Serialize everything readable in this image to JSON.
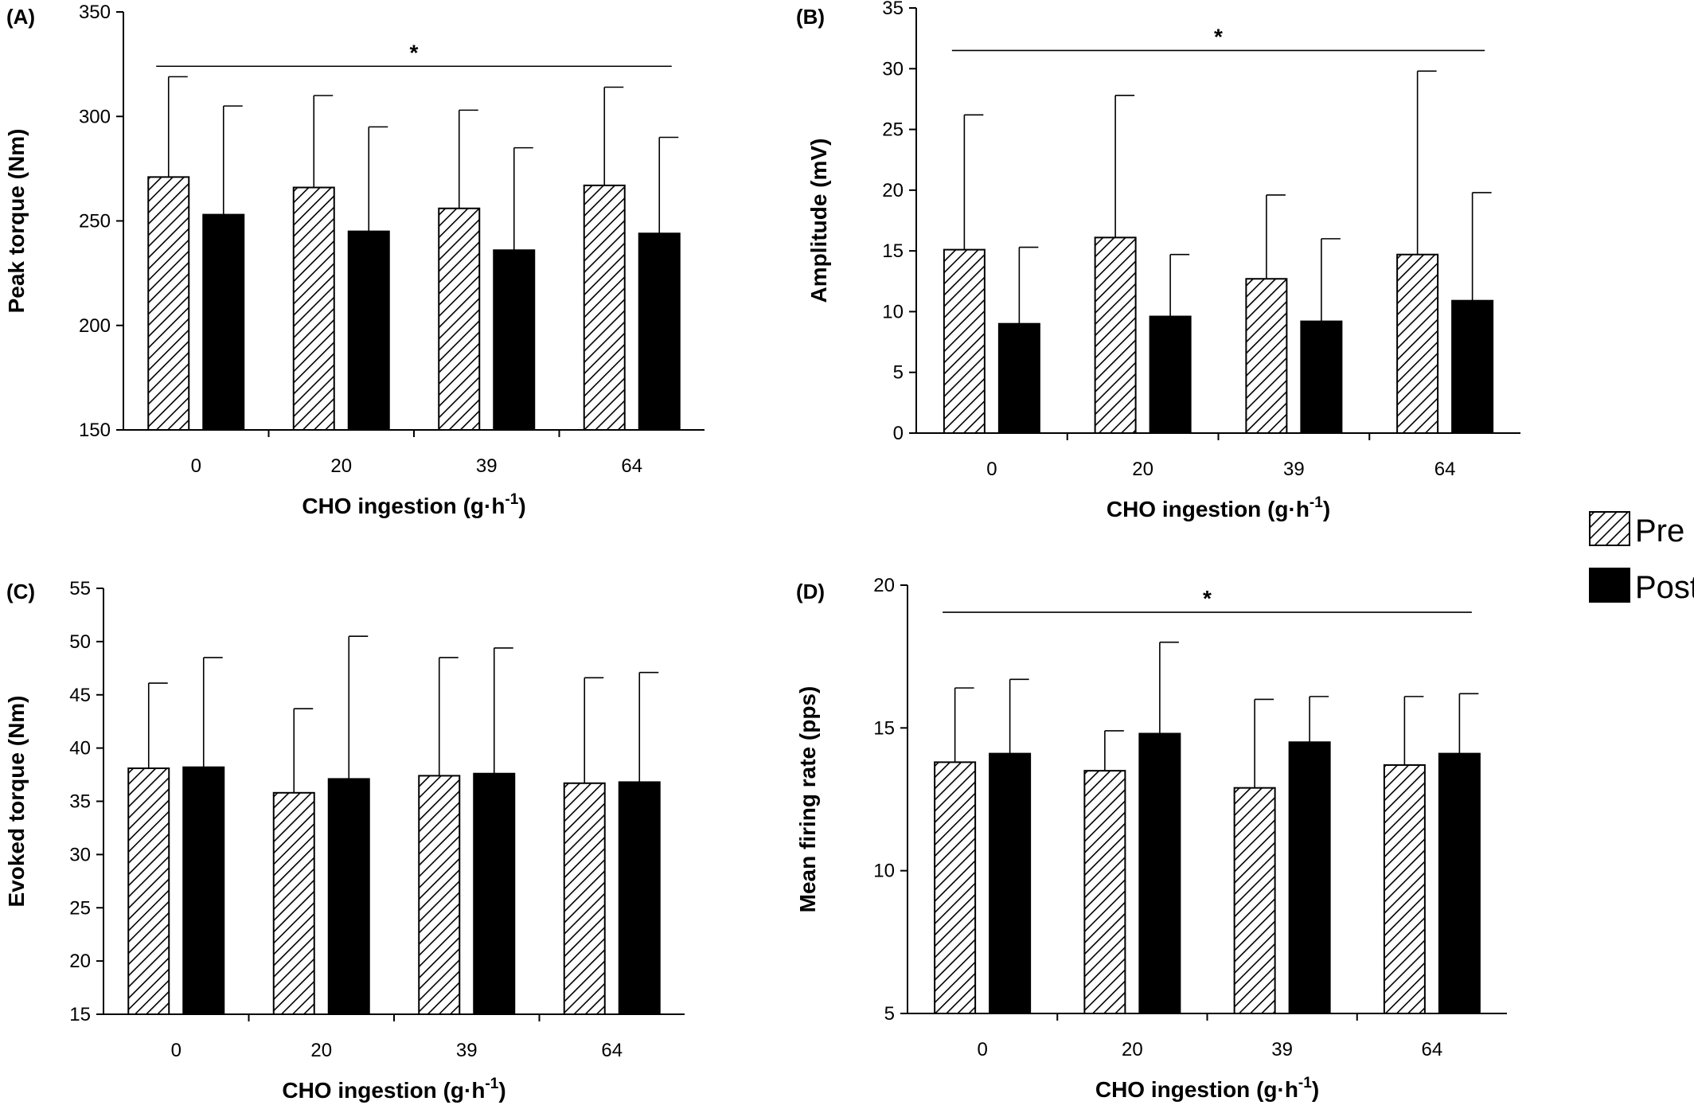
{
  "legend": {
    "items": [
      {
        "label": "Pre",
        "fill": "hatch"
      },
      {
        "label": "Post",
        "fill": "solid"
      }
    ]
  },
  "chart_data": [
    {
      "type": "bar",
      "panel": "(A)",
      "categories": [
        "0",
        "20",
        "39",
        "64"
      ],
      "xlabel_main": "CHO ingestion (g·h",
      "xlabel_sup": "-1",
      "xlabel_end": ")",
      "ylabel": "Peak torque (Nm)",
      "ylim": [
        150,
        350
      ],
      "yticks": [
        150,
        200,
        250,
        300,
        350
      ],
      "grid": false,
      "significance": {
        "label": "*",
        "from": "0",
        "to": "64",
        "y": 324
      },
      "series": [
        {
          "name": "Pre",
          "values": [
            271,
            266,
            256,
            267
          ],
          "errors": [
            48,
            44,
            47,
            47
          ]
        },
        {
          "name": "Post",
          "values": [
            253,
            245,
            236,
            244
          ],
          "errors": [
            52,
            50,
            49,
            46
          ]
        }
      ]
    },
    {
      "type": "bar",
      "panel": "(B)",
      "categories": [
        "0",
        "20",
        "39",
        "64"
      ],
      "xlabel_main": "CHO ingestion (g·h",
      "xlabel_sup": "-1",
      "xlabel_end": ")",
      "ylabel": "Amplitude (mV)",
      "ylim": [
        0,
        35
      ],
      "yticks": [
        0,
        5,
        10,
        15,
        20,
        25,
        30,
        35
      ],
      "grid": false,
      "significance": {
        "label": "*",
        "from": "0",
        "to": "64",
        "y": 31.5
      },
      "series": [
        {
          "name": "Pre",
          "values": [
            15.1,
            16.1,
            12.7,
            14.7
          ],
          "errors": [
            11.1,
            11.7,
            6.9,
            15.1
          ]
        },
        {
          "name": "Post",
          "values": [
            9.0,
            9.6,
            9.2,
            10.9
          ],
          "errors": [
            6.3,
            5.1,
            6.8,
            8.9
          ]
        }
      ]
    },
    {
      "type": "bar",
      "panel": "(C)",
      "categories": [
        "0",
        "20",
        "39",
        "64"
      ],
      "xlabel_main": "CHO ingestion (g·h",
      "xlabel_sup": "-1",
      "xlabel_end": ")",
      "ylabel": "Evoked torque (Nm)",
      "ylim": [
        15,
        55
      ],
      "yticks": [
        15,
        20,
        25,
        30,
        35,
        40,
        45,
        50,
        55
      ],
      "grid": false,
      "series": [
        {
          "name": "Pre",
          "values": [
            38.1,
            35.8,
            37.4,
            36.7
          ],
          "errors": [
            8.0,
            7.9,
            11.1,
            9.9
          ]
        },
        {
          "name": "Post",
          "values": [
            38.2,
            37.1,
            37.6,
            36.8
          ],
          "errors": [
            10.3,
            13.4,
            11.8,
            10.3
          ]
        }
      ]
    },
    {
      "type": "bar",
      "panel": "(D)",
      "categories": [
        "0",
        "20",
        "39",
        "64"
      ],
      "xlabel_main": "CHO ingestion (g·h",
      "xlabel_sup": "-1",
      "xlabel_end": ")",
      "ylabel": "Mean firing rate (pps)",
      "ylim": [
        5,
        20
      ],
      "yticks": [
        5,
        10,
        15,
        20
      ],
      "grid": false,
      "significance": {
        "label": "*",
        "from": "0",
        "to": "64",
        "y": 19.05
      },
      "series": [
        {
          "name": "Pre",
          "values": [
            13.8,
            13.5,
            12.9,
            13.7
          ],
          "errors": [
            2.6,
            1.4,
            3.1,
            2.4
          ]
        },
        {
          "name": "Post",
          "values": [
            14.1,
            14.8,
            14.5,
            14.1
          ],
          "errors": [
            2.6,
            3.2,
            1.6,
            2.1
          ]
        }
      ]
    }
  ]
}
